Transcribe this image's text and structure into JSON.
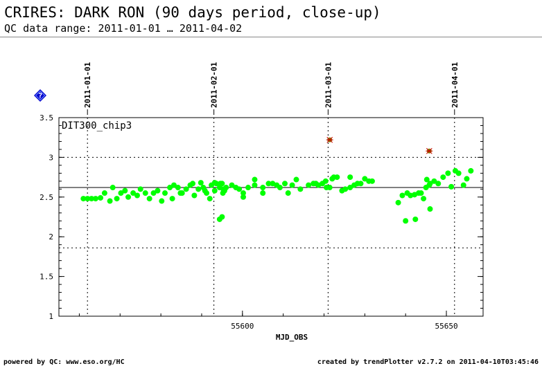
{
  "header": {
    "title": "CRIRES: DARK RON (90 days period, close-up)",
    "subtitle": "QC data range: 2011-01-01 … 2011-04-02"
  },
  "footer": {
    "left": "powered by QC: www.eso.org/HC",
    "right": "created by trendPlotter v2.7.2 on 2011-04-10T03:45:46"
  },
  "help_icon": "question-diamond-icon",
  "colors": {
    "points": "#00ff00",
    "outliers": "#808000",
    "help": "#0000cc"
  },
  "chart_data": {
    "type": "scatter",
    "xlabel": "MJD_OBS",
    "panel_label": "DIT300_chip3",
    "xlim": [
      55555,
      55659
    ],
    "ylim": [
      1,
      3.5
    ],
    "xticks": [
      55600,
      55650
    ],
    "yticks": [
      1,
      1.5,
      2,
      2.5,
      3,
      3.5
    ],
    "date_markers": [
      {
        "label": "2011-01-01",
        "x": 55562
      },
      {
        "label": "2011-02-01",
        "x": 55593
      },
      {
        "label": "2011-03-01",
        "x": 55621
      },
      {
        "label": "2011-04-01",
        "x": 55652
      }
    ],
    "reference_lines": {
      "mean": 2.62,
      "upper": 3.0,
      "lower": 1.86
    },
    "points": [
      [
        55561.0,
        2.48
      ],
      [
        55562.0,
        2.48
      ],
      [
        55563.0,
        2.48
      ],
      [
        55564.0,
        2.48
      ],
      [
        55565.2,
        2.49
      ],
      [
        55566.2,
        2.55
      ],
      [
        55567.5,
        2.45
      ],
      [
        55568.2,
        2.62
      ],
      [
        55569.2,
        2.48
      ],
      [
        55570.2,
        2.55
      ],
      [
        55571.2,
        2.58
      ],
      [
        55572.0,
        2.5
      ],
      [
        55573.2,
        2.55
      ],
      [
        55574.2,
        2.52
      ],
      [
        55575.0,
        2.6
      ],
      [
        55576.2,
        2.55
      ],
      [
        55577.2,
        2.48
      ],
      [
        55578.2,
        2.55
      ],
      [
        55579.2,
        2.58
      ],
      [
        55580.2,
        2.45
      ],
      [
        55581.0,
        2.55
      ],
      [
        55582.2,
        2.62
      ],
      [
        55582.8,
        2.48
      ],
      [
        55583.2,
        2.65
      ],
      [
        55584.2,
        2.62
      ],
      [
        55584.8,
        2.55
      ],
      [
        55585.2,
        2.55
      ],
      [
        55586.2,
        2.6
      ],
      [
        55587.2,
        2.65
      ],
      [
        55587.8,
        2.67
      ],
      [
        55588.2,
        2.52
      ],
      [
        55589.2,
        2.6
      ],
      [
        55589.8,
        2.68
      ],
      [
        55590.4,
        2.62
      ],
      [
        55590.8,
        2.58
      ],
      [
        55591.2,
        2.55
      ],
      [
        55592.0,
        2.48
      ],
      [
        55592.4,
        2.65
      ],
      [
        55593.2,
        2.68
      ],
      [
        55593.2,
        2.58
      ],
      [
        55593.6,
        2.67
      ],
      [
        55594.4,
        2.62
      ],
      [
        55594.6,
        2.67
      ],
      [
        55595.0,
        2.67
      ],
      [
        55595.2,
        2.55
      ],
      [
        55595.3,
        2.6
      ],
      [
        55595.6,
        2.58
      ],
      [
        55596.0,
        2.62
      ],
      [
        55594.4,
        2.22
      ],
      [
        55595.0,
        2.25
      ],
      [
        55597.4,
        2.65
      ],
      [
        55598.4,
        2.62
      ],
      [
        55599.2,
        2.6
      ],
      [
        55600.2,
        2.55
      ],
      [
        55600.2,
        2.5
      ],
      [
        55601.4,
        2.62
      ],
      [
        55603.0,
        2.65
      ],
      [
        55603.0,
        2.72
      ],
      [
        55605.0,
        2.62
      ],
      [
        55605.0,
        2.55
      ],
      [
        55606.4,
        2.67
      ],
      [
        55607.4,
        2.67
      ],
      [
        55608.4,
        2.65
      ],
      [
        55609.2,
        2.62
      ],
      [
        55610.4,
        2.67
      ],
      [
        55611.2,
        2.55
      ],
      [
        55612.2,
        2.65
      ],
      [
        55613.2,
        2.72
      ],
      [
        55614.2,
        2.6
      ],
      [
        55616.2,
        2.65
      ],
      [
        55617.4,
        2.67
      ],
      [
        55618.0,
        2.67
      ],
      [
        55618.6,
        2.65
      ],
      [
        55619.6,
        2.67
      ],
      [
        55620.4,
        2.7
      ],
      [
        55620.6,
        2.62
      ],
      [
        55621.4,
        2.62
      ],
      [
        55622.0,
        2.73
      ],
      [
        55622.4,
        2.75
      ],
      [
        55623.2,
        2.75
      ],
      [
        55624.4,
        2.58
      ],
      [
        55625.2,
        2.6
      ],
      [
        55626.4,
        2.75
      ],
      [
        55626.4,
        2.62
      ],
      [
        55627.4,
        2.65
      ],
      [
        55628.2,
        2.67
      ],
      [
        55629.0,
        2.67
      ],
      [
        55630.0,
        2.73
      ],
      [
        55631.0,
        2.7
      ],
      [
        55631.8,
        2.7
      ],
      [
        55638.2,
        2.43
      ],
      [
        55639.2,
        2.52
      ],
      [
        55640.0,
        2.2
      ],
      [
        55640.4,
        2.55
      ],
      [
        55641.2,
        2.52
      ],
      [
        55642.2,
        2.53
      ],
      [
        55642.4,
        2.22
      ],
      [
        55643.2,
        2.55
      ],
      [
        55643.8,
        2.55
      ],
      [
        55644.4,
        2.48
      ],
      [
        55645.0,
        2.62
      ],
      [
        55645.2,
        2.72
      ],
      [
        55645.8,
        2.65
      ],
      [
        55646.0,
        2.67
      ],
      [
        55646.0,
        2.35
      ],
      [
        55647.0,
        2.7
      ],
      [
        55648.0,
        2.67
      ],
      [
        55649.2,
        2.75
      ],
      [
        55650.4,
        2.8
      ],
      [
        55651.2,
        2.63
      ],
      [
        55652.2,
        2.83
      ],
      [
        55653.0,
        2.8
      ],
      [
        55654.2,
        2.65
      ],
      [
        55655.0,
        2.73
      ],
      [
        55656.0,
        2.83
      ]
    ],
    "outliers": [
      [
        55621.4,
        3.22
      ],
      [
        55645.8,
        3.08
      ]
    ]
  }
}
